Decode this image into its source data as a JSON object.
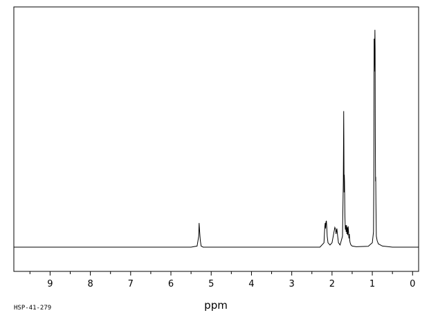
{
  "chart_data": {
    "type": "line",
    "title": "",
    "xlabel": "ppm",
    "ylabel": "",
    "x_reversed": true,
    "xlim": [
      9.9,
      -0.15
    ],
    "ylim": [
      -0.1,
      1.0
    ],
    "grid": false,
    "x_ticks": [
      9,
      8,
      7,
      6,
      5,
      4,
      3,
      2,
      1,
      0
    ],
    "x_tick_labels": [
      "9",
      "8",
      "7",
      "6",
      "5",
      "4",
      "3",
      "2",
      "1",
      "0"
    ],
    "sample_id": "HSP-41-279",
    "series": [
      {
        "x": [
          9.9,
          5.5,
          5.35,
          5.31,
          5.3,
          5.29,
          5.27,
          5.25,
          5.2,
          2.3,
          2.2,
          2.18,
          2.17,
          2.16,
          2.15,
          2.14,
          2.13,
          2.12,
          2.1,
          2.05,
          2.0,
          1.95,
          1.93,
          1.91,
          1.9,
          1.88,
          1.86,
          1.84,
          1.8,
          1.77,
          1.74,
          1.72,
          1.71,
          1.705,
          1.7,
          1.695,
          1.69,
          1.68,
          1.67,
          1.66,
          1.65,
          1.64,
          1.63,
          1.62,
          1.61,
          1.6,
          1.59,
          1.58,
          1.57,
          1.56,
          1.55,
          1.53,
          1.5,
          1.4,
          1.1,
          1.0,
          0.97,
          0.96,
          0.955,
          0.95,
          0.945,
          0.94,
          0.935,
          0.93,
          0.925,
          0.92,
          0.915,
          0.91,
          0.9,
          0.88,
          0.85,
          0.8,
          0.75,
          0.5,
          -0.15
        ],
        "y": [
          0.0,
          0.0,
          0.005,
          0.05,
          0.11,
          0.08,
          0.03,
          0.005,
          0.0,
          0.0,
          0.02,
          0.09,
          0.11,
          0.085,
          0.115,
          0.12,
          0.09,
          0.05,
          0.02,
          0.01,
          0.02,
          0.07,
          0.09,
          0.08,
          0.06,
          0.085,
          0.05,
          0.02,
          0.01,
          0.03,
          0.05,
          0.3,
          0.62,
          0.45,
          0.25,
          0.33,
          0.3,
          0.14,
          0.08,
          0.1,
          0.07,
          0.1,
          0.06,
          0.09,
          0.055,
          0.095,
          0.07,
          0.04,
          0.06,
          0.03,
          0.02,
          0.01,
          0.005,
          0.002,
          0.004,
          0.02,
          0.07,
          0.4,
          0.95,
          0.8,
          0.85,
          0.88,
          0.99,
          0.9,
          0.5,
          0.3,
          0.32,
          0.2,
          0.05,
          0.03,
          0.015,
          0.01,
          0.005,
          0.0,
          0.0
        ]
      }
    ]
  }
}
